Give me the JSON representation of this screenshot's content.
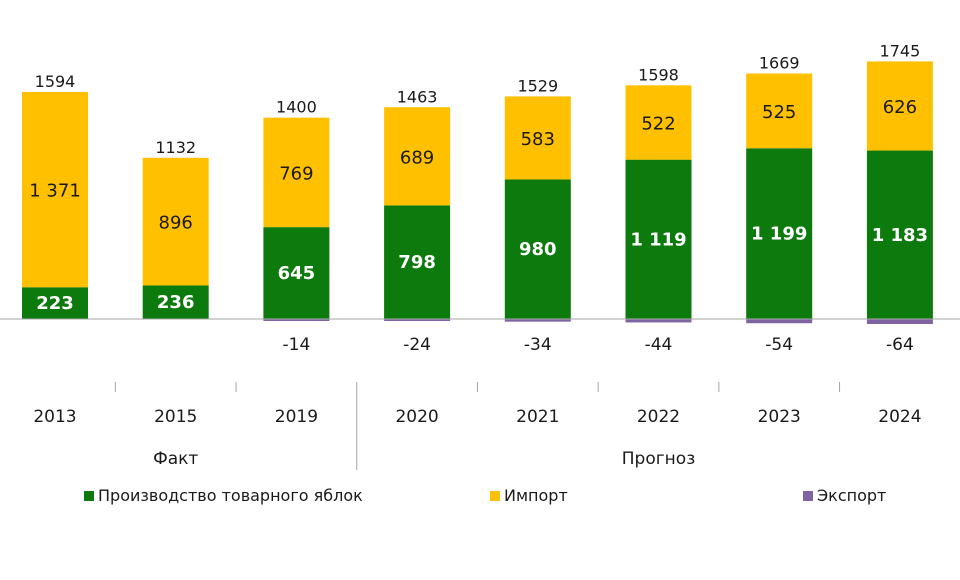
{
  "chart_data": {
    "type": "bar",
    "stacked": true,
    "categories": [
      "2013",
      "2015",
      "2019",
      "2020",
      "2021",
      "2022",
      "2023",
      "2024"
    ],
    "series": [
      {
        "name": "Производство товарного яблок",
        "color": "#0d7a0d",
        "values": [
          223,
          236,
          645,
          798,
          980,
          1119,
          1199,
          1183
        ],
        "labels": [
          "223",
          "236",
          "645",
          "798",
          "980",
          "1 119",
          "1 199",
          "1 183"
        ]
      },
      {
        "name": "Импорт",
        "color": "#ffc000",
        "values": [
          1371,
          896,
          769,
          689,
          583,
          522,
          525,
          626
        ],
        "labels": [
          "1 371",
          "896",
          "769",
          "689",
          "583",
          "522",
          "525",
          "626"
        ]
      },
      {
        "name": "Экспорт",
        "color": "#8064a2",
        "values": [
          0,
          0,
          -14,
          -24,
          -34,
          -44,
          -54,
          -64
        ],
        "labels": [
          "",
          "",
          "-14",
          "-24",
          "-34",
          "-44",
          "-54",
          "-64"
        ]
      }
    ],
    "totals": [
      "1594",
      "1132",
      "1400",
      "1463",
      "1529",
      "1598",
      "1669",
      "1745"
    ],
    "groups": [
      {
        "label": "Факт",
        "categories": [
          "2013",
          "2015",
          "2019"
        ]
      },
      {
        "label": "Прогноз",
        "categories": [
          "2020",
          "2021",
          "2022",
          "2023",
          "2024"
        ]
      }
    ],
    "ylim": [
      -64,
      1745
    ],
    "grid": false,
    "legend_position": "bottom"
  }
}
